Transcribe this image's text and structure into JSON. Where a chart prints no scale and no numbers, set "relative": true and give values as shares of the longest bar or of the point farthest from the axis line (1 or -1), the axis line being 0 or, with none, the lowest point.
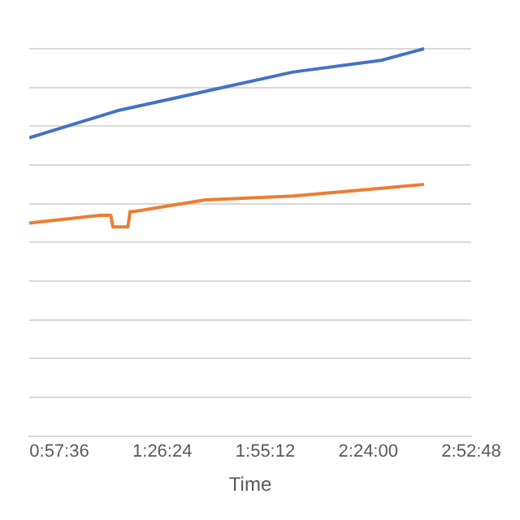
{
  "chart_data": {
    "type": "line",
    "xlabel": "Time",
    "relative": true,
    "grid": "y",
    "legend": false,
    "marker": "none",
    "line_style": "solid",
    "tick_labels": "x",
    "xlim": [
      0.82,
      2.88
    ],
    "xticks": [
      {
        "value": 0.96,
        "label": "0:57:36"
      },
      {
        "value": 1.44,
        "label": "1:26:24"
      },
      {
        "value": 1.92,
        "label": "1:55:12"
      },
      {
        "value": 2.4,
        "label": "2:24:00"
      },
      {
        "value": 2.88,
        "label": "2:52:48"
      }
    ],
    "series": [
      {
        "color": "#4472c4",
        "x": [
          0.82,
          1.23,
          1.64,
          2.05,
          2.46,
          2.66
        ],
        "values": [
          0.77,
          0.84,
          0.89,
          0.94,
          0.97,
          1
        ]
      },
      {
        "color": "#ed7d31",
        "x": [
          0.82,
          1.15,
          1.2,
          1.21,
          1.28,
          1.29,
          1.31,
          1.64,
          2.05,
          2.46,
          2.66
        ],
        "values": [
          0.55,
          0.57,
          0.57,
          0.54,
          0.54,
          0.58,
          0.58,
          0.61,
          0.62,
          0.64,
          0.65
        ]
      }
    ]
  }
}
